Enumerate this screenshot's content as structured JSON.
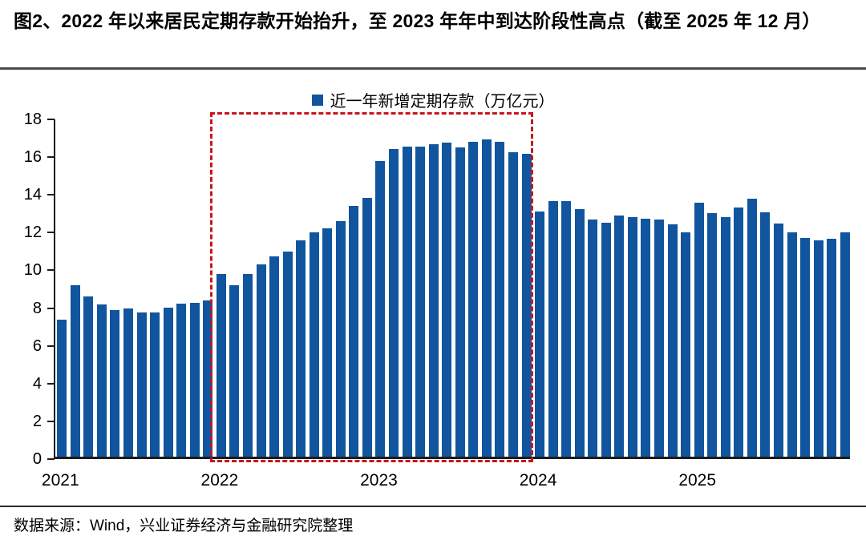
{
  "title": "图2、2022 年以来居民定期存款开始抬升，至 2023 年年中到达阶段性高点（截至 2025 年 12 月）",
  "source": "数据来源：Wind，兴业证券经济与金融研究院整理",
  "legend": {
    "label": "近一年新增定期存款（万亿元）"
  },
  "colors": {
    "bar": "#10559D",
    "highlight": "#C8161E",
    "axis": "#1c1c1c",
    "text": "#000000",
    "background": "#ffffff"
  },
  "chart_data": {
    "type": "bar",
    "title": "近一年新增定期存款（万亿元）",
    "xlabel": "",
    "ylabel": "",
    "ylim": [
      0,
      18
    ],
    "yticks": [
      0,
      2,
      4,
      6,
      8,
      10,
      12,
      14,
      16,
      18
    ],
    "grid": false,
    "legend_position": "top-center",
    "x": [
      "2021-01",
      "2021-02",
      "2021-03",
      "2021-04",
      "2021-05",
      "2021-06",
      "2021-07",
      "2021-08",
      "2021-09",
      "2021-10",
      "2021-11",
      "2021-12",
      "2022-01",
      "2022-02",
      "2022-03",
      "2022-04",
      "2022-05",
      "2022-06",
      "2022-07",
      "2022-08",
      "2022-09",
      "2022-10",
      "2022-11",
      "2022-12",
      "2023-01",
      "2023-02",
      "2023-03",
      "2023-04",
      "2023-05",
      "2023-06",
      "2023-07",
      "2023-08",
      "2023-09",
      "2023-10",
      "2023-11",
      "2023-12",
      "2024-01",
      "2024-02",
      "2024-03",
      "2024-04",
      "2024-05",
      "2024-06",
      "2024-07",
      "2024-08",
      "2024-09",
      "2024-10",
      "2024-11",
      "2024-12",
      "2025-01",
      "2025-02",
      "2025-03",
      "2025-04",
      "2025-05",
      "2025-06",
      "2025-07",
      "2025-08",
      "2025-09",
      "2025-10",
      "2025-11",
      "2025-12"
    ],
    "series": [
      {
        "name": "近一年新增定期存款（万亿元）",
        "values": [
          7.25,
          9.1,
          8.5,
          8.05,
          7.75,
          7.85,
          7.65,
          7.65,
          7.9,
          8.1,
          8.15,
          8.3,
          9.7,
          9.1,
          9.7,
          10.2,
          10.6,
          10.85,
          11.45,
          11.9,
          12.1,
          12.5,
          13.3,
          13.7,
          15.65,
          16.3,
          16.45,
          16.45,
          16.55,
          16.65,
          16.4,
          16.7,
          16.8,
          16.7,
          16.15,
          16.05,
          13.0,
          13.55,
          13.55,
          13.1,
          12.55,
          12.4,
          12.8,
          12.7,
          12.6,
          12.55,
          12.3,
          11.9,
          13.45,
          12.9,
          12.7,
          13.2,
          13.65,
          12.95,
          12.35,
          11.9,
          11.6,
          11.45,
          11.55,
          11.9
        ]
      }
    ],
    "xtick_labels": [
      "2021",
      "2022",
      "2023",
      "2024",
      "2025"
    ],
    "xtick_month_indices": [
      0,
      12,
      24,
      36,
      48
    ],
    "highlight_box": {
      "start": "2022-01",
      "end": "2023-12",
      "start_index": 12,
      "end_index": 35,
      "style": "dashed",
      "color": "#C8161E"
    }
  }
}
